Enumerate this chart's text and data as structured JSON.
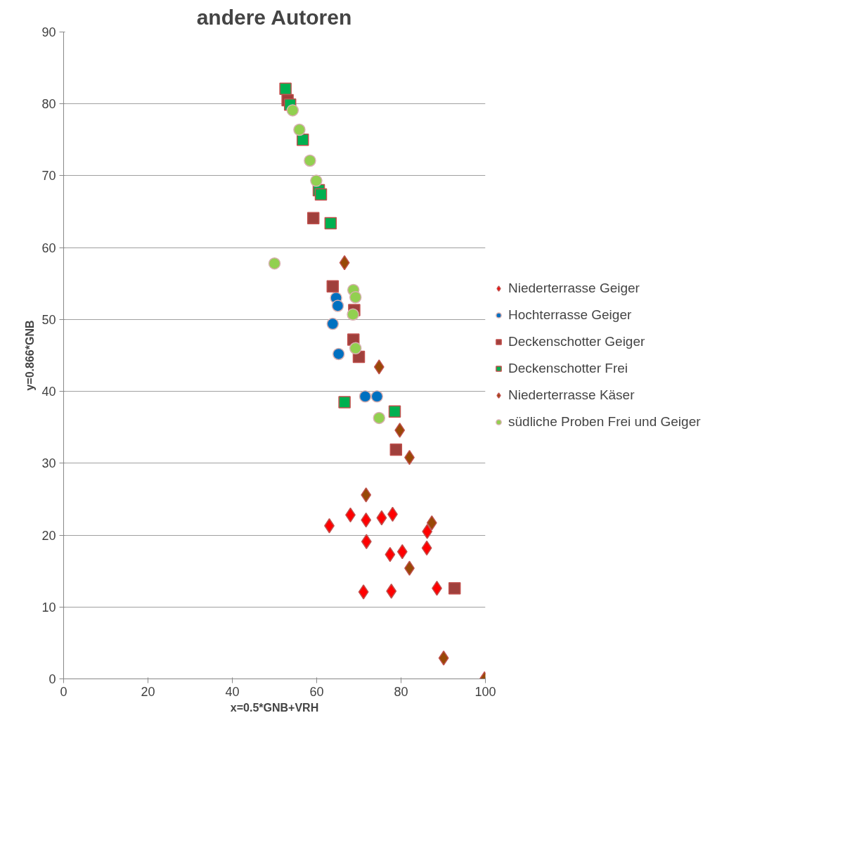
{
  "chart_data": {
    "type": "scatter",
    "title": "andere Autoren",
    "xlabel": "x=0.5*GNB+VRH",
    "ylabel": "y=0.866*GNB",
    "xlim": [
      0,
      100
    ],
    "xticks": [
      0,
      20,
      40,
      60,
      80,
      100
    ],
    "ylim": [
      0,
      90
    ],
    "yticks": [
      0,
      10,
      20,
      30,
      40,
      50,
      60,
      70,
      80,
      90
    ],
    "grid": "y",
    "legend": "right",
    "series": [
      {
        "name": "Niederterrasse Geiger",
        "color": "#ff0000",
        "marker": "diamond",
        "x": [
          63.0,
          68.0,
          71.7,
          75.4,
          78.0,
          71.8,
          77.4,
          80.3,
          86.2,
          86.1,
          71.1,
          77.7,
          88.5
        ],
        "values": [
          21.3,
          22.8,
          22.1,
          22.4,
          22.9,
          19.1,
          17.3,
          17.7,
          20.5,
          18.2,
          12.1,
          12.2,
          12.6
        ]
      },
      {
        "name": "Hochterrasse Geiger",
        "color": "#0070c0",
        "marker": "circle",
        "x": [
          64.6,
          65.0,
          63.8,
          65.2,
          71.5,
          74.3
        ],
        "values": [
          53.0,
          51.9,
          49.4,
          45.2,
          39.3,
          39.3
        ]
      },
      {
        "name": "Deckenschotter Geiger",
        "color": "#a0403c",
        "marker": "square",
        "x": [
          53.1,
          59.2,
          63.8,
          68.9,
          68.7,
          70.0,
          78.8,
          92.7
        ],
        "values": [
          80.5,
          64.1,
          54.6,
          51.3,
          47.2,
          44.8,
          31.9,
          12.6
        ]
      },
      {
        "name": "Deckenschotter Frei",
        "color": "#00b050",
        "marker": "square",
        "x": [
          52.6,
          53.7,
          56.7,
          60.5,
          61.0,
          63.3,
          66.6,
          78.5
        ],
        "values": [
          82.1,
          79.9,
          75.0,
          68.0,
          67.4,
          63.4,
          38.5,
          37.2
        ]
      },
      {
        "name": "Niederterrasse Käser",
        "color": "#984807",
        "marker": "diamond",
        "x": [
          66.6,
          74.8,
          79.7,
          82.0,
          71.7,
          87.3,
          82.0,
          90.1,
          99.8
        ],
        "values": [
          57.9,
          43.4,
          34.6,
          30.8,
          25.6,
          21.7,
          15.4,
          2.9,
          0
        ]
      },
      {
        "name": "südliche Proben Frei und Geiger",
        "color": "#92d050",
        "marker": "circle",
        "x": [
          50.0,
          54.3,
          55.9,
          58.4,
          59.9,
          68.7,
          69.2,
          68.6,
          69.2,
          74.8
        ],
        "values": [
          57.8,
          79.1,
          76.4,
          72.1,
          69.3,
          54.1,
          53.1,
          50.7,
          46.0,
          36.3
        ]
      }
    ]
  }
}
